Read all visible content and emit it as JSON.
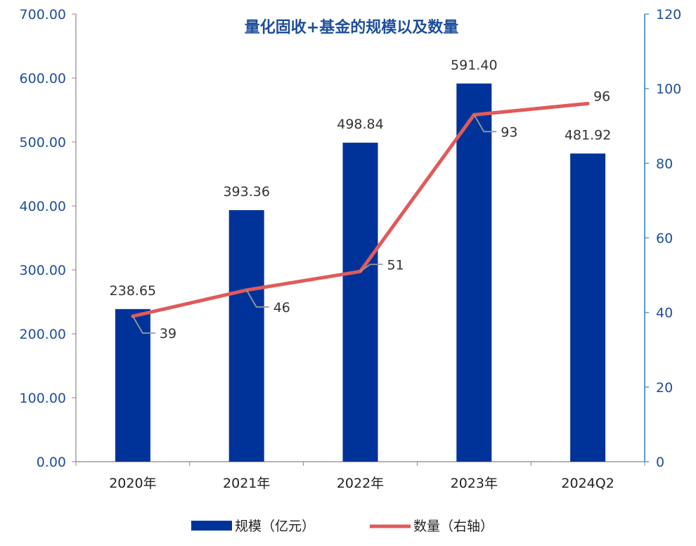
{
  "chart_data": {
    "type": "bar",
    "title": "量化固收+基金的规模以及数量",
    "categories": [
      "2020年",
      "2021年",
      "2022年",
      "2023年",
      "2024Q2"
    ],
    "series": [
      {
        "name": "规模（亿元）",
        "type": "bar",
        "axis": "left",
        "values": [
          238.65,
          393.36,
          498.84,
          591.4,
          481.92
        ],
        "labels": [
          "238.65",
          "393.36",
          "498.84",
          "591.40",
          "481.92"
        ],
        "color": "#003399"
      },
      {
        "name": "数量（右轴）",
        "type": "line",
        "axis": "right",
        "values": [
          39,
          46,
          51,
          93,
          96
        ],
        "labels": [
          "39",
          "46",
          "51",
          "93",
          "96"
        ],
        "color": "#e05a5a"
      }
    ],
    "y_left": {
      "lim": [
        0,
        700
      ],
      "ticks": [
        0,
        100,
        200,
        300,
        400,
        500,
        600,
        700
      ],
      "tick_labels": [
        "0.00",
        "100.00",
        "200.00",
        "300.00",
        "400.00",
        "500.00",
        "600.00",
        "700.00"
      ]
    },
    "y_right": {
      "lim": [
        0,
        120
      ],
      "ticks": [
        0,
        20,
        40,
        60,
        80,
        100,
        120
      ],
      "tick_labels": [
        "0",
        "20",
        "40",
        "60",
        "80",
        "100",
        "120"
      ],
      "color": "#5b9bd5"
    },
    "legend": {
      "placement": "bottom",
      "entries": [
        "规模（亿元）",
        "数量（右轴）"
      ]
    },
    "grid": false
  }
}
